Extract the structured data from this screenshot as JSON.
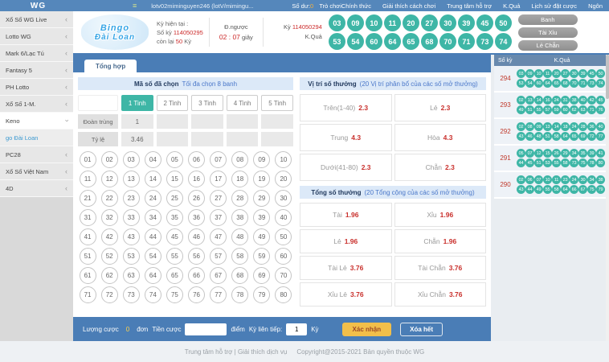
{
  "colors": {
    "topbar": "#5587bb",
    "teal": "#3eb6a6",
    "odds_red": "#c9302c",
    "accent_blue": "#4a7db6",
    "confirm_yellow": "#f2bf4a"
  },
  "topbar": {
    "logo": "WG",
    "menu_icon": "≡",
    "username": "lotv02miminguyen246 (lotV/mimingu...",
    "balance_label": "Số dư:",
    "balance_value": "0",
    "menu": [
      "Trò chơiChính thức",
      "Giải thích cách chơi",
      "Trung tâm hỗ trợ",
      "K.Quả",
      "Lịch sử đặt cược",
      "Ngôn"
    ]
  },
  "header": {
    "logo_line1": "Bingo",
    "logo_line2": "Đài Loan",
    "current_label": "Kỳ hiện tại :",
    "round_prefix": "Số kỳ",
    "round_value": "114050295",
    "remaining_prefix": "còn lại",
    "remaining_value": "50",
    "remaining_suffix": "Kỳ",
    "countdown_label": "Đ.ngược",
    "countdown_time": "02 : 07",
    "countdown_unit": "giây",
    "last_round_label": "Kỳ",
    "last_round_value": "114050294",
    "result_label": "K.Quả",
    "result_row1": [
      "03",
      "09",
      "10",
      "11",
      "20",
      "27",
      "30",
      "39",
      "45",
      "50"
    ],
    "result_row2": [
      "53",
      "54",
      "60",
      "64",
      "65",
      "68",
      "70",
      "71",
      "73",
      "74"
    ],
    "side_buttons": [
      "Banh",
      "Tài Xỉu",
      "Lẻ Chẵn"
    ]
  },
  "sidebar": {
    "items": [
      {
        "label": "Xổ Số WG Live",
        "type": "collapsed"
      },
      {
        "label": "Lotto WG",
        "type": "collapsed"
      },
      {
        "label": "Mark 6/Lạc Tú",
        "type": "collapsed"
      },
      {
        "label": "Fantasy 5",
        "type": "collapsed"
      },
      {
        "label": "PH Lotto",
        "type": "collapsed"
      },
      {
        "label": "Xổ Số 1-M.",
        "type": "collapsed"
      },
      {
        "label": "Keno",
        "type": "expanded"
      },
      {
        "label": "go Đài Loan",
        "type": "sub-active"
      },
      {
        "label": "PC28",
        "type": "collapsed"
      },
      {
        "label": "Xổ Số Việt Nam",
        "type": "collapsed"
      },
      {
        "label": "4D",
        "type": "collapsed"
      }
    ]
  },
  "main": {
    "tab": "Tổng hợp",
    "chosen": {
      "title": "Mã số đã chọn",
      "note": "Tối đa chọn 8 banh",
      "tabs": [
        "1 Tinh",
        "2 Tinh",
        "3 Tinh",
        "4 Tinh",
        "5 Tinh"
      ],
      "active_tab": "1 Tinh",
      "row1_label": "Đoàn trùng",
      "row1_values": [
        "1",
        "",
        "",
        "",
        ""
      ],
      "row2_label": "Tỷ lệ",
      "row2_values": [
        "3.46",
        "",
        "",
        "",
        ""
      ],
      "numbers": [
        "01",
        "02",
        "03",
        "04",
        "05",
        "06",
        "07",
        "08",
        "09",
        "10",
        "11",
        "12",
        "13",
        "14",
        "15",
        "16",
        "17",
        "18",
        "19",
        "20",
        "21",
        "22",
        "23",
        "24",
        "25",
        "26",
        "27",
        "28",
        "29",
        "30",
        "31",
        "32",
        "33",
        "34",
        "35",
        "36",
        "37",
        "38",
        "39",
        "40",
        "41",
        "42",
        "43",
        "44",
        "45",
        "46",
        "47",
        "48",
        "49",
        "50",
        "51",
        "52",
        "53",
        "54",
        "55",
        "56",
        "57",
        "58",
        "59",
        "60",
        "61",
        "62",
        "63",
        "64",
        "65",
        "66",
        "67",
        "68",
        "69",
        "70",
        "71",
        "72",
        "73",
        "74",
        "75",
        "76",
        "77",
        "78",
        "79",
        "80"
      ]
    },
    "position_section": {
      "title": "Vị trí số thưởng",
      "note": "(20 Vị trí phân bổ của các số mở thưởng)",
      "cells": [
        {
          "label": "Trên(1-40)",
          "odds": "2.3"
        },
        {
          "label": "Lẻ",
          "odds": "2.3"
        },
        {
          "label": "Trung",
          "odds": "4.3"
        },
        {
          "label": "Hòa",
          "odds": "4.3"
        },
        {
          "label": "Dưới(41-80)",
          "odds": "2.3"
        },
        {
          "label": "Chẵn",
          "odds": "2.3"
        }
      ]
    },
    "total_section": {
      "title": "Tổng số thưởng",
      "note": "(20 Tổng cộng của các số mở thưởng)",
      "cells": [
        {
          "label": "Tài",
          "odds": "1.96"
        },
        {
          "label": "Xỉu",
          "odds": "1.96"
        },
        {
          "label": "Lẻ",
          "odds": "1.96"
        },
        {
          "label": "Chẵn",
          "odds": "1.96"
        },
        {
          "label": "Tài Lẻ",
          "odds": "3.76"
        },
        {
          "label": "Tài Chẵn",
          "odds": "3.76"
        },
        {
          "label": "Xỉu Lẻ",
          "odds": "3.76"
        },
        {
          "label": "Xỉu Chẵn",
          "odds": "3.76"
        }
      ]
    },
    "betbar": {
      "amount_label": "Lượng cược",
      "amount_value": "0",
      "amount_unit": "đơn",
      "stake_label": "Tiền cược",
      "stake_value": "",
      "stake_unit": "điểm",
      "streak_label": "Kỳ liên tiếp:",
      "streak_value": "1",
      "streak_unit": "Kỳ",
      "confirm_label": "Xác nhận",
      "clear_label": "Xóa hết"
    }
  },
  "results_panel": {
    "col_period": "Số kỳ",
    "col_result": "K.Quả",
    "rows": [
      {
        "period": "294",
        "row1": [
          "03",
          "09",
          "10",
          "11",
          "20",
          "27",
          "30",
          "39",
          "45",
          "50"
        ],
        "row2": [
          "53",
          "54",
          "60",
          "64",
          "65",
          "68",
          "70",
          "71",
          "73",
          "74"
        ]
      },
      {
        "period": "293",
        "row1": [
          "02",
          "13",
          "14",
          "16",
          "24",
          "31",
          "38",
          "40",
          "42",
          "45"
        ],
        "row2": [
          "49",
          "51",
          "55",
          "57",
          "59",
          "60",
          "62",
          "63",
          "71",
          "76"
        ]
      },
      {
        "period": "292",
        "row1": [
          "02",
          "08",
          "09",
          "13",
          "14",
          "18",
          "24",
          "28",
          "36",
          "40"
        ],
        "row2": [
          "43",
          "46",
          "48",
          "51",
          "58",
          "64",
          "65",
          "69",
          "72",
          "77"
        ]
      },
      {
        "period": "291",
        "row1": [
          "05",
          "07",
          "12",
          "15",
          "26",
          "29",
          "34",
          "35",
          "39",
          "41"
        ],
        "row2": [
          "44",
          "45",
          "51",
          "53",
          "55",
          "58",
          "73",
          "75",
          "78",
          "80"
        ]
      },
      {
        "period": "290",
        "row1": [
          "02",
          "06",
          "07",
          "10",
          "11",
          "23",
          "24",
          "30",
          "34",
          "38"
        ],
        "row2": [
          "43",
          "44",
          "49",
          "55",
          "58",
          "64",
          "66",
          "67",
          "75",
          "79"
        ]
      }
    ]
  },
  "footer": {
    "links": "Trung tâm hỗ trợ | Giải thích dịch vụ",
    "copyright": "Copyright@2015-2021 Bản quyền thuộc WG"
  }
}
